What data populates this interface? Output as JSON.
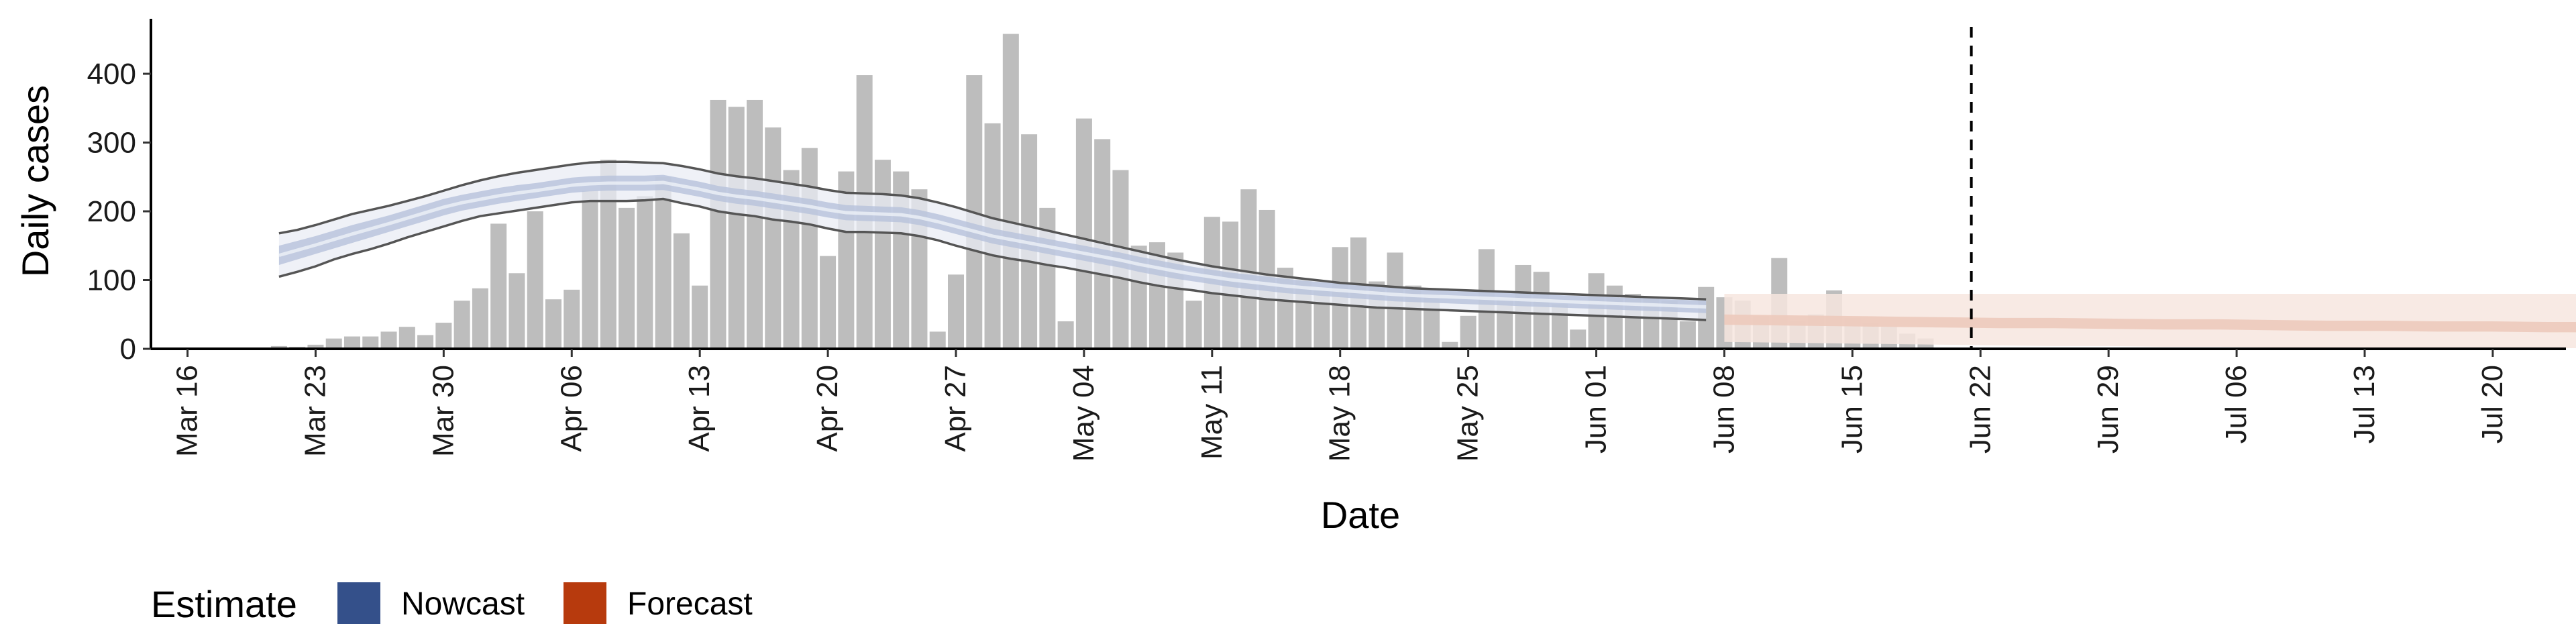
{
  "chart_data": {
    "type": "bar",
    "ylabel": "Daily cases",
    "xlabel": "Date",
    "ylim": [
      0,
      480
    ],
    "y_ticks": [
      0,
      100,
      200,
      300,
      400
    ],
    "xlim": [
      "2020-03-14",
      "2020-07-24"
    ],
    "x_ticks": [
      {
        "date": "2020-03-16",
        "label": "Mar 16"
      },
      {
        "date": "2020-03-23",
        "label": "Mar 23"
      },
      {
        "date": "2020-03-30",
        "label": "Mar 30"
      },
      {
        "date": "2020-04-06",
        "label": "Apr 06"
      },
      {
        "date": "2020-04-13",
        "label": "Apr 13"
      },
      {
        "date": "2020-04-20",
        "label": "Apr 20"
      },
      {
        "date": "2020-04-27",
        "label": "Apr 27"
      },
      {
        "date": "2020-05-04",
        "label": "May 04"
      },
      {
        "date": "2020-05-11",
        "label": "May 11"
      },
      {
        "date": "2020-05-18",
        "label": "May 18"
      },
      {
        "date": "2020-05-25",
        "label": "May 25"
      },
      {
        "date": "2020-06-01",
        "label": "Jun 01"
      },
      {
        "date": "2020-06-08",
        "label": "Jun 08"
      },
      {
        "date": "2020-06-15",
        "label": "Jun 15"
      },
      {
        "date": "2020-06-22",
        "label": "Jun 22"
      },
      {
        "date": "2020-06-29",
        "label": "Jun 29"
      },
      {
        "date": "2020-07-06",
        "label": "Jul 06"
      },
      {
        "date": "2020-07-13",
        "label": "Jul 13"
      },
      {
        "date": "2020-07-20",
        "label": "Jul 20"
      }
    ],
    "bars": {
      "start_date": "2020-03-21",
      "color": "#bdbdbd",
      "values": [
        4,
        3,
        6,
        15,
        18,
        18,
        25,
        32,
        20,
        38,
        70,
        88,
        182,
        110,
        200,
        72,
        86,
        230,
        275,
        205,
        222,
        250,
        168,
        92,
        362,
        352,
        362,
        322,
        260,
        292,
        135,
        258,
        398,
        275,
        258,
        232,
        25,
        108,
        398,
        328,
        458,
        312,
        205,
        40,
        335,
        305,
        260,
        150,
        155,
        140,
        70,
        192,
        185,
        232,
        202,
        118,
        102,
        85,
        148,
        162,
        98,
        140,
        92,
        80,
        10,
        48,
        145,
        72,
        122,
        112,
        65,
        28,
        110,
        92,
        80,
        75,
        70,
        40,
        90,
        75,
        70,
        48,
        132,
        40,
        50,
        85,
        45,
        38,
        32,
        22,
        15
      ]
    },
    "cutoff_date": "2020-06-21",
    "nowcast": {
      "start_date": "2020-03-21",
      "step_days": 1,
      "fill_outer": "#e9ecf4",
      "fill_inner": "#b7c2db",
      "median_line": "#eef1f8",
      "outline": "#555555",
      "lower90": [
        105,
        112,
        120,
        130,
        138,
        145,
        153,
        162,
        170,
        178,
        186,
        193,
        197,
        201,
        205,
        209,
        213,
        215,
        215,
        215,
        216,
        218,
        212,
        207,
        200,
        196,
        193,
        188,
        185,
        181,
        175,
        170,
        170,
        169,
        168,
        164,
        158,
        150,
        143,
        136,
        131,
        127,
        122,
        118,
        113,
        108,
        103,
        97,
        92,
        88,
        85,
        81,
        78,
        75,
        72,
        70,
        68,
        66,
        64,
        62,
        60,
        59,
        58,
        57,
        56,
        55,
        54,
        53,
        52,
        51,
        50,
        49,
        48,
        47,
        46,
        45,
        44,
        43,
        42
      ],
      "lower50": [
        122,
        130,
        138,
        146,
        154,
        162,
        170,
        178,
        186,
        194,
        201,
        206,
        211,
        215,
        219,
        223,
        227,
        229,
        230,
        230,
        230,
        231,
        226,
        221,
        215,
        211,
        208,
        204,
        200,
        196,
        191,
        187,
        186,
        185,
        184,
        180,
        174,
        167,
        160,
        153,
        148,
        143,
        138,
        133,
        128,
        123,
        118,
        112,
        107,
        102,
        98,
        94,
        90,
        87,
        84,
        81,
        79,
        77,
        75,
        73,
        71,
        69,
        68,
        67,
        66,
        65,
        64,
        63,
        62,
        61,
        60,
        59,
        58,
        57,
        56,
        55,
        54,
        53,
        52
      ],
      "upper50": [
        150,
        157,
        164,
        172,
        180,
        187,
        194,
        202,
        210,
        218,
        224,
        229,
        234,
        238,
        241,
        245,
        249,
        251,
        252,
        252,
        252,
        253,
        248,
        243,
        237,
        233,
        230,
        226,
        222,
        218,
        213,
        209,
        208,
        207,
        206,
        202,
        196,
        189,
        182,
        175,
        170,
        165,
        160,
        155,
        150,
        145,
        140,
        134,
        129,
        124,
        119,
        115,
        111,
        108,
        105,
        102,
        99,
        97,
        95,
        93,
        91,
        89,
        87,
        86,
        85,
        84,
        83,
        82,
        81,
        80,
        78,
        77,
        76,
        75,
        74,
        73,
        72,
        71,
        70
      ],
      "upper90": [
        168,
        173,
        180,
        188,
        196,
        202,
        208,
        215,
        222,
        230,
        238,
        245,
        251,
        256,
        260,
        264,
        268,
        271,
        272,
        272,
        271,
        270,
        266,
        261,
        255,
        251,
        248,
        244,
        240,
        236,
        231,
        227,
        226,
        225,
        223,
        219,
        213,
        206,
        198,
        190,
        184,
        178,
        172,
        166,
        160,
        154,
        148,
        142,
        136,
        130,
        125,
        120,
        116,
        112,
        108,
        105,
        102,
        99,
        96,
        94,
        92,
        90,
        88,
        87,
        86,
        85,
        84,
        83,
        82,
        81,
        80,
        79,
        78,
        77,
        76,
        75,
        74,
        73,
        72
      ]
    },
    "forecast": {
      "start_date": "2020-06-08",
      "step_days": 1,
      "fill_outer": "#f7e6df",
      "fill_inner": "#ecc8ba",
      "lower90": [
        10,
        9,
        8,
        7,
        6,
        5,
        4,
        4,
        3,
        3,
        2,
        2,
        2,
        2,
        1,
        1,
        1,
        1,
        1,
        1,
        1,
        1,
        1,
        1,
        1,
        1,
        1,
        1,
        1,
        1,
        1,
        1,
        1,
        1,
        1,
        1,
        1,
        1,
        1,
        1,
        1,
        1
      ],
      "lower50": [
        35,
        34,
        33,
        32,
        31,
        30,
        30,
        29,
        28,
        28,
        27,
        26,
        26,
        25,
        25,
        24,
        24,
        23,
        23,
        22,
        22,
        21,
        21,
        20,
        20,
        20,
        19,
        19,
        19,
        18,
        18,
        18,
        17,
        17,
        17,
        16,
        16,
        16,
        15,
        15,
        15,
        14
      ],
      "upper50": [
        50,
        49,
        48,
        47,
        46,
        45,
        45,
        44,
        43,
        43,
        42,
        41,
        41,
        40,
        40,
        39,
        39,
        38,
        38,
        37,
        37,
        36,
        36,
        35,
        35,
        35,
        34,
        34,
        34,
        33,
        33,
        33,
        32,
        32,
        32,
        31,
        31,
        31,
        30,
        30,
        30,
        29
      ],
      "upper90": [
        80,
        80,
        80,
        80,
        80,
        80,
        80,
        80,
        80,
        80,
        80,
        80,
        80,
        80,
        80,
        80,
        80,
        80,
        80,
        80,
        80,
        80,
        80,
        80,
        80,
        80,
        80,
        80,
        80,
        80,
        80,
        80,
        80,
        80,
        80,
        80,
        80,
        80,
        80,
        80,
        80,
        80
      ]
    },
    "forecast_sampled_step_days": 3,
    "legend": {
      "title": "Estimate",
      "placement": "bottom",
      "items": [
        {
          "name": "Nowcast",
          "color": "#34508a"
        },
        {
          "name": "Forecast",
          "color": "#b73a0d"
        }
      ]
    }
  }
}
